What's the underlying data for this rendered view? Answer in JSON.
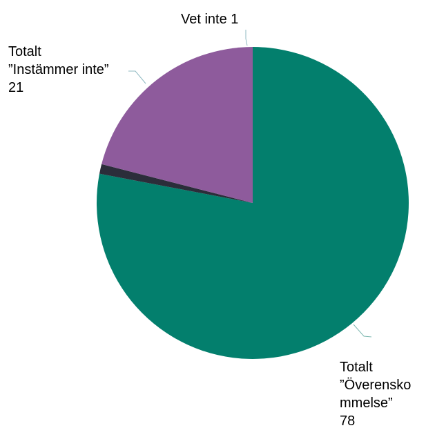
{
  "chart_data": {
    "type": "pie",
    "title": "",
    "start_angle_deg": 0,
    "direction": "clockwise",
    "slices": [
      {
        "label": "Totalt ”Överenskommelse”",
        "label_lines": [
          "Totalt",
          "”Överensko",
          "mmelse”",
          "78"
        ],
        "value": 78,
        "color": "#037f6d",
        "leader_color": "#7fb9b1"
      },
      {
        "label": "Vet inte",
        "label_lines": [
          "Vet inte 1"
        ],
        "value": 1,
        "color": "#2b2d3a",
        "leader_color": "#8fb9c2"
      },
      {
        "label": "Totalt ”Instämmer inte”",
        "label_lines": [
          "Totalt",
          "”Instämmer inte”",
          "21"
        ],
        "value": 21,
        "color": "#8e5b9c",
        "leader_color": "#8fb9c2"
      }
    ]
  }
}
